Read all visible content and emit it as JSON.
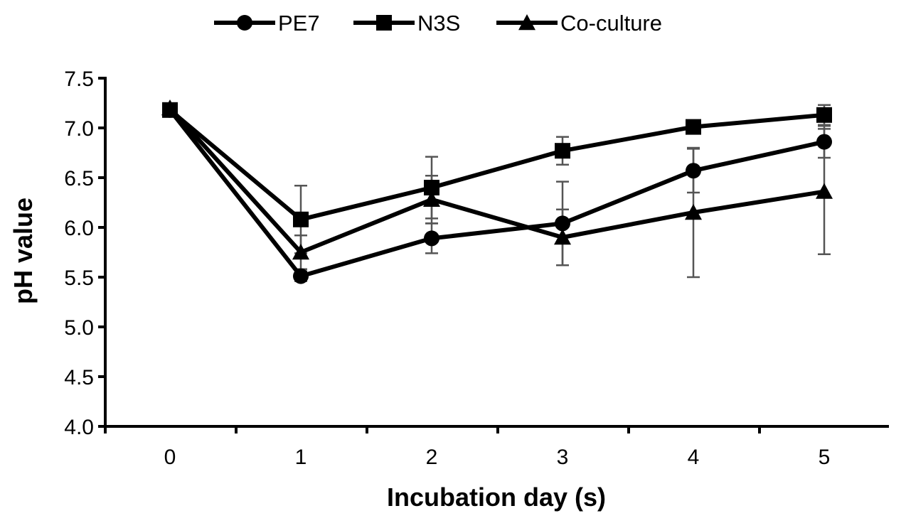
{
  "chart_data": {
    "type": "line",
    "title": "",
    "xlabel": "Incubation day (s)",
    "ylabel": "pH value",
    "x": [
      0,
      1,
      2,
      3,
      4,
      5
    ],
    "x_tick_labels": [
      "0",
      "1",
      "2",
      "3",
      "4",
      "5"
    ],
    "y_tick_labels": [
      "4.0",
      "4.5",
      "5.0",
      "5.5",
      "6.0",
      "6.5",
      "7.0",
      "7.5"
    ],
    "ylim": [
      4.0,
      7.5
    ],
    "grid": false,
    "legend_position": "top-center",
    "line_color": "#000000",
    "error_bar_color": "#555555",
    "series": [
      {
        "name": "PE7",
        "marker": "circle",
        "values": [
          7.18,
          5.51,
          5.89,
          6.04,
          6.57,
          6.86
        ],
        "errors": [
          0.02,
          0.05,
          0.15,
          0.42,
          0.22,
          0.16
        ]
      },
      {
        "name": "N3S",
        "marker": "square",
        "values": [
          7.18,
          6.08,
          6.4,
          6.77,
          7.01,
          7.13
        ],
        "errors": [
          0.02,
          0.34,
          0.31,
          0.14,
          0.02,
          0.1
        ]
      },
      {
        "name": "Co-culture",
        "marker": "triangle",
        "values": [
          7.2,
          5.75,
          6.28,
          5.9,
          6.15,
          6.36
        ],
        "errors": [
          0.02,
          0.17,
          0.24,
          0.28,
          0.65,
          0.63
        ]
      }
    ]
  }
}
